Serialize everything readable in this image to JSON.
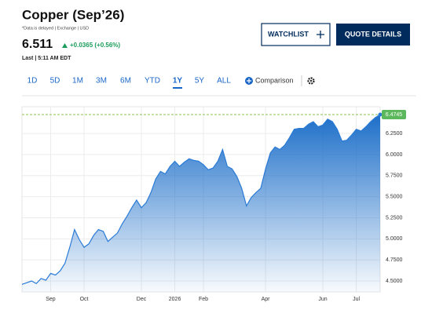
{
  "header": {
    "title": "Copper (Sep’26)",
    "note": "*Data is delayed | Exchange | USD",
    "price": "6.511",
    "change": "+0.0365 (+0.56%)",
    "last": "Last | 5:11 AM EDT"
  },
  "buttons": {
    "watchlist": "WATCHLIST",
    "quote": "QUOTE DETAILS"
  },
  "tabs": [
    "1D",
    "5D",
    "1M",
    "3M",
    "6M",
    "YTD",
    "1Y",
    "5Y",
    "ALL"
  ],
  "active_tab": "1Y",
  "comparison": "Comparison",
  "chart_data": {
    "type": "area",
    "color": "#2b7bd6",
    "values": [
      4.46,
      4.48,
      4.5,
      4.47,
      4.53,
      4.51,
      4.59,
      4.57,
      4.62,
      4.71,
      4.9,
      5.11,
      4.99,
      4.9,
      4.94,
      5.04,
      5.11,
      5.09,
      4.97,
      5.02,
      5.07,
      5.18,
      5.27,
      5.37,
      5.46,
      5.37,
      5.43,
      5.55,
      5.71,
      5.8,
      5.77,
      5.86,
      5.92,
      5.86,
      5.91,
      5.95,
      5.93,
      5.92,
      5.88,
      5.82,
      5.84,
      5.92,
      6.06,
      5.86,
      5.83,
      5.74,
      5.6,
      5.39,
      5.49,
      5.55,
      5.6,
      5.83,
      6.02,
      6.09,
      6.06,
      6.11,
      6.2,
      6.3,
      6.31,
      6.31,
      6.36,
      6.39,
      6.33,
      6.35,
      6.42,
      6.39,
      6.3,
      6.16,
      6.17,
      6.23,
      6.3,
      6.28,
      6.33,
      6.39,
      6.44,
      6.4745
    ],
    "xlim": [
      0,
      75
    ],
    "xticks": [
      {
        "value": 6,
        "label": "Sep"
      },
      {
        "value": 13,
        "label": "Oct"
      },
      {
        "value": 25,
        "label": "Dec"
      },
      {
        "value": 32,
        "label": "2026"
      },
      {
        "value": 38,
        "label": "Feb"
      },
      {
        "value": 51,
        "label": "Apr"
      },
      {
        "value": 63,
        "label": "Jun"
      },
      {
        "value": 70,
        "label": "Jul"
      }
    ],
    "ylim": [
      4.37,
      6.53
    ],
    "yticks": [
      {
        "value": 4.5,
        "label": "4.5000"
      },
      {
        "value": 4.75,
        "label": "4.7500"
      },
      {
        "value": 5,
        "label": "5.0000"
      },
      {
        "value": 5.25,
        "label": "5.2500"
      },
      {
        "value": 5.5,
        "label": "5.5000"
      },
      {
        "value": 5.75,
        "label": "5.7500"
      },
      {
        "value": 6,
        "label": "6.0000"
      },
      {
        "value": 6.25,
        "label": "6.2500"
      }
    ],
    "current": {
      "value": 6.4745,
      "label": "6.4745"
    },
    "grid": true
  }
}
